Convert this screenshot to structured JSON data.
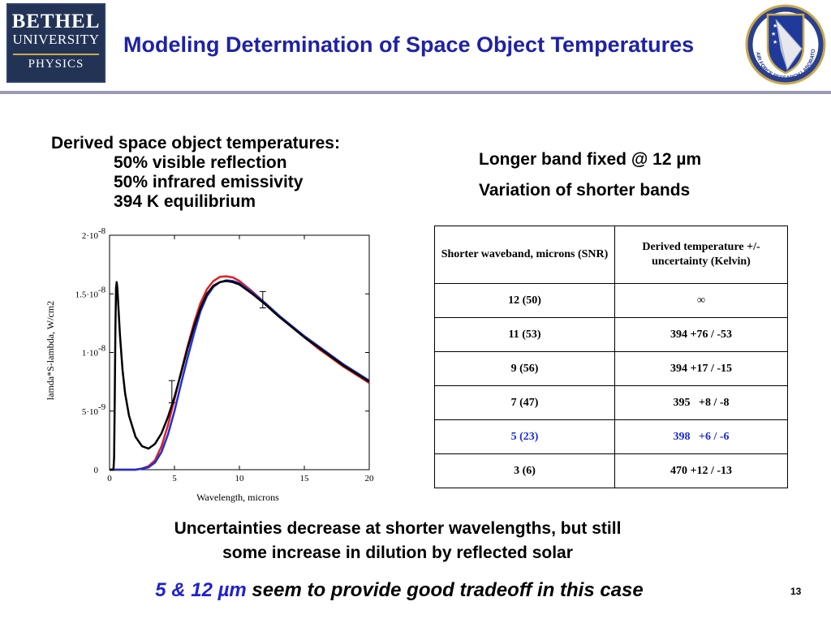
{
  "logo": {
    "line1": "BETHEL",
    "line2": "UNIVERSITY",
    "line3": "PHYSICS"
  },
  "title": "Modeling Determination of Space Object Temperatures",
  "seal": {
    "text": "AIR FORCE RESEARCH LABORATORY",
    "icon": "afrl-seal-icon"
  },
  "derived": {
    "heading": "Derived space object temperatures:",
    "lines": [
      "50% visible reflection",
      "50% infrared emissivity",
      "394 K equilibrium"
    ]
  },
  "right_text": {
    "line1": "Longer band fixed @ 12 µm",
    "line2": "Variation of shorter bands"
  },
  "table": {
    "headers": [
      "Shorter waveband, microns (SNR)",
      "Derived temperature +/- uncertainty (Kelvin)"
    ],
    "rows": [
      {
        "band": "12 (50)",
        "temp": "∞"
      },
      {
        "band": "11 (53)",
        "temp": "394 +76 / -53"
      },
      {
        "band": "9 (56)",
        "temp": "394 +17 / -15"
      },
      {
        "band": "7 (47)",
        "temp": "395   +8 / -8"
      },
      {
        "band": "5 (23)",
        "temp": "398   +6 / -6",
        "highlight": true
      },
      {
        "band": "3 (6)",
        "temp": "470 +12 / -13"
      }
    ],
    "highlight_color": "#1a2bd8"
  },
  "bottom": {
    "line1": "Uncertainties decrease at shorter wavelengths, but still",
    "line2": "some increase in dilution by reflected solar",
    "conclusion_blue": "5 & 12 µm",
    "conclusion_rest": " seem to provide good tradeoff in this case"
  },
  "page_number": "13",
  "chart_data": {
    "type": "line",
    "xlabel": "Wavelength, microns",
    "ylabel": "lamda*S-lambda, W/cm2",
    "xlim": [
      0,
      20
    ],
    "ylim": [
      0,
      2e-08
    ],
    "x_ticks": [
      0,
      5,
      10,
      15,
      20
    ],
    "x_tick_labels": [
      "0",
      "5",
      "10",
      "15",
      "20"
    ],
    "y_ticks": [
      0,
      5e-09,
      1e-08,
      1.5e-08,
      2e-08
    ],
    "y_tick_labels": [
      {
        "base": "0",
        "exp": ""
      },
      {
        "base": "5·10",
        "exp": "-9"
      },
      {
        "base": "1·10",
        "exp": "-8"
      },
      {
        "base": "1.5·10",
        "exp": "-8"
      },
      {
        "base": "2·10",
        "exp": "-8"
      }
    ],
    "series": [
      {
        "color": "#e02020",
        "x": [
          0,
          2,
          2.5,
          3,
          3.5,
          4,
          4.5,
          5,
          5.5,
          6,
          6.5,
          7,
          7.5,
          8,
          8.5,
          9,
          9.5,
          10,
          11,
          12,
          13,
          14,
          15,
          16,
          17,
          18,
          19,
          20
        ],
        "y": [
          0,
          0,
          1e-10,
          3e-10,
          8e-10,
          2e-09,
          3.8e-09,
          6e-09,
          8.3e-09,
          1.05e-08,
          1.25e-08,
          1.42e-08,
          1.54e-08,
          1.61e-08,
          1.645e-08,
          1.65e-08,
          1.64e-08,
          1.61e-08,
          1.52e-08,
          1.42e-08,
          1.32e-08,
          1.22e-08,
          1.13e-08,
          1.04e-08,
          9.6e-09,
          8.8e-09,
          8.1e-09,
          7.4e-09
        ]
      },
      {
        "color": "#1f2fd8",
        "x": [
          0,
          2,
          2.5,
          3,
          3.5,
          4,
          4.5,
          5,
          5.5,
          6,
          6.5,
          7,
          7.5,
          8,
          8.5,
          9,
          9.5,
          10,
          11,
          12,
          13,
          14,
          15,
          16,
          17,
          18,
          19,
          20
        ],
        "y": [
          0,
          0,
          1e-10,
          2e-10,
          6e-10,
          1.5e-09,
          3e-09,
          5e-09,
          7.3e-09,
          9.5e-09,
          1.16e-08,
          1.35e-08,
          1.48e-08,
          1.56e-08,
          1.6e-08,
          1.615e-08,
          1.61e-08,
          1.59e-08,
          1.51e-08,
          1.42e-08,
          1.32e-08,
          1.23e-08,
          1.14e-08,
          1.06e-08,
          9.8e-09,
          9e-09,
          8.3e-09,
          7.6e-09
        ]
      },
      {
        "color": "#000000",
        "x": [
          0,
          0.3,
          0.35,
          0.4,
          0.45,
          0.5,
          0.55,
          0.6,
          0.7,
          0.8,
          1,
          1.2,
          1.5,
          2,
          2.5,
          3,
          3.5,
          4,
          4.5,
          5,
          5.5,
          6,
          6.5,
          7,
          7.5,
          8,
          8.5,
          9,
          9.5,
          10,
          11,
          12,
          13,
          14,
          15,
          16,
          17,
          18,
          19,
          20
        ],
        "y": [
          0,
          0,
          1e-09,
          6e-09,
          1.2e-08,
          1.55e-08,
          1.6e-08,
          1.55e-08,
          1.35e-08,
          1.15e-08,
          8.5e-09,
          6.5e-09,
          4.6e-09,
          2.8e-09,
          2e-09,
          1.8e-09,
          2.2e-09,
          3.1e-09,
          4.5e-09,
          6.2e-09,
          8.2e-09,
          1.03e-08,
          1.22e-08,
          1.38e-08,
          1.5e-08,
          1.57e-08,
          1.6e-08,
          1.61e-08,
          1.6e-08,
          1.58e-08,
          1.5e-08,
          1.41e-08,
          1.31e-08,
          1.22e-08,
          1.13e-08,
          1.05e-08,
          9.7e-09,
          8.9e-09,
          8.2e-09,
          7.5e-09
        ]
      }
    ],
    "error_bars": [
      {
        "x": 4.8,
        "y": 7.6e-09,
        "low": 5.7e-09,
        "high": 7.6e-09
      },
      {
        "x": 11.8,
        "y": 1.45e-08,
        "low": 1.38e-08,
        "high": 1.52e-08
      }
    ]
  }
}
